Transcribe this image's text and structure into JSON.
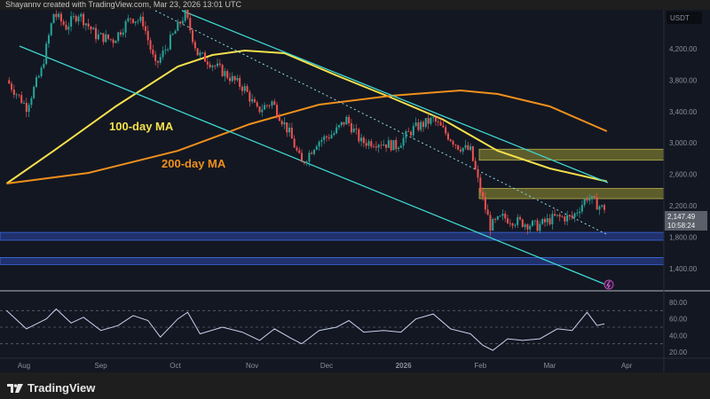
{
  "header": {
    "attribution": "Shayannv created with TradingView.com, Mar 23, 2026 13:01 UTC"
  },
  "footer": {
    "brand": "TradingView"
  },
  "colors": {
    "background": "#131722",
    "up": "#26a69a",
    "down": "#ef5350",
    "ma100": "#f5e14c",
    "ma200": "#f0901c",
    "channel": "#3fd6d0",
    "supply_zone": "#6b6a2e",
    "demand_zone": "#23367a",
    "rsi": "#c8d2ee"
  },
  "chart_data": [
    {
      "type": "candlestick",
      "currency_label": "USDT",
      "ylim": [
        1200,
        4900
      ],
      "y_ticks": [
        "4,200.00",
        "3,800.00",
        "3,400.00",
        "3,000.00",
        "2,600.00",
        "2,200.00",
        "1,800.00",
        "1,400.00"
      ],
      "y_tick_values": [
        4200,
        3800,
        3400,
        3000,
        2600,
        2200,
        1800,
        1400
      ],
      "x_ticks": [
        "Aug",
        "Sep",
        "Oct",
        "Nov",
        "Dec",
        "2026",
        "Feb",
        "Mar",
        "Apr"
      ],
      "x_tick_dates": [
        "2025-08-01",
        "2025-09-01",
        "2025-10-01",
        "2025-11-01",
        "2025-12-01",
        "2026-01-01",
        "2026-02-01",
        "2026-03-01",
        "2026-04-01"
      ],
      "last_price": "2,147.49",
      "countdown": "10:58:24",
      "price_path": [
        [
          "2025-07-25",
          3800
        ],
        [
          "2025-08-02",
          3460
        ],
        [
          "2025-08-08",
          3920
        ],
        [
          "2025-08-13",
          4650
        ],
        [
          "2025-08-18",
          4480
        ],
        [
          "2025-08-23",
          4650
        ],
        [
          "2025-08-30",
          4370
        ],
        [
          "2025-09-06",
          4310
        ],
        [
          "2025-09-13",
          4600
        ],
        [
          "2025-09-18",
          4540
        ],
        [
          "2025-09-23",
          3975
        ],
        [
          "2025-09-29",
          4310
        ],
        [
          "2025-10-05",
          4650
        ],
        [
          "2025-10-10",
          4140
        ],
        [
          "2025-10-15",
          4030
        ],
        [
          "2025-10-22",
          3860
        ],
        [
          "2025-10-29",
          3690
        ],
        [
          "2025-11-03",
          3410
        ],
        [
          "2025-11-09",
          3520
        ],
        [
          "2025-11-16",
          3125
        ],
        [
          "2025-11-21",
          2730
        ],
        [
          "2025-11-27",
          3010
        ],
        [
          "2025-12-04",
          3125
        ],
        [
          "2025-12-09",
          3300
        ],
        [
          "2025-12-15",
          3010
        ],
        [
          "2025-12-22",
          3010
        ],
        [
          "2025-12-29",
          2960
        ],
        [
          "2026-01-05",
          3180
        ],
        [
          "2026-01-13",
          3300
        ],
        [
          "2026-01-18",
          3125
        ],
        [
          "2026-01-23",
          2960
        ],
        [
          "2026-01-28",
          2900
        ],
        [
          "2026-02-01",
          2390
        ],
        [
          "2026-02-05",
          1940
        ],
        [
          "2026-02-10",
          2050
        ],
        [
          "2026-02-17",
          1990
        ],
        [
          "2026-02-24",
          1940
        ],
        [
          "2026-03-03",
          2050
        ],
        [
          "2026-03-10",
          2050
        ],
        [
          "2026-03-16",
          2310
        ],
        [
          "2026-03-23",
          2147.49
        ]
      ],
      "series": [
        {
          "name": "100-day MA",
          "points": [
            [
              "2025-07-25",
              2482
            ],
            [
              "2025-08-13",
              2900
            ],
            [
              "2025-09-07",
              3466
            ],
            [
              "2025-10-02",
              3974
            ],
            [
              "2025-10-16",
              4121
            ],
            [
              "2025-10-29",
              4177
            ],
            [
              "2025-11-14",
              4143
            ],
            [
              "2025-12-05",
              3860
            ],
            [
              "2025-12-27",
              3578
            ],
            [
              "2026-01-17",
              3296
            ],
            [
              "2026-02-08",
              2900
            ],
            [
              "2026-03-01",
              2675
            ],
            [
              "2026-03-24",
              2510
            ]
          ]
        },
        {
          "name": "200-day MA",
          "points": [
            [
              "2025-07-25",
              2482
            ],
            [
              "2025-08-27",
              2618
            ],
            [
              "2025-10-02",
              2900
            ],
            [
              "2025-10-31",
              3240
            ],
            [
              "2025-11-28",
              3488
            ],
            [
              "2025-12-27",
              3601
            ],
            [
              "2026-01-24",
              3669
            ],
            [
              "2026-02-08",
              3624
            ],
            [
              "2026-03-01",
              3466
            ],
            [
              "2026-03-24",
              3149
            ]
          ]
        }
      ],
      "zones": [
        {
          "kind": "resistance",
          "from": 2780,
          "to": 2920
        },
        {
          "kind": "resistance",
          "from": 2290,
          "to": 2420
        },
        {
          "kind": "support",
          "from": 1760,
          "to": 1860
        },
        {
          "kind": "support",
          "from": 1450,
          "to": 1540
        }
      ]
    },
    {
      "type": "line",
      "indicator": "RSI",
      "y_ticks": [
        "80.00",
        "60.00",
        "40.00",
        "20.00"
      ],
      "y_tick_values": [
        80,
        60,
        40,
        20
      ],
      "bands": [
        70,
        50,
        30
      ],
      "values": [
        [
          "2025-07-25",
          70
        ],
        [
          "2025-08-02",
          48
        ],
        [
          "2025-08-10",
          60
        ],
        [
          "2025-08-14",
          72
        ],
        [
          "2025-08-20",
          55
        ],
        [
          "2025-08-25",
          62
        ],
        [
          "2025-09-01",
          46
        ],
        [
          "2025-09-08",
          52
        ],
        [
          "2025-09-14",
          64
        ],
        [
          "2025-09-20",
          58
        ],
        [
          "2025-09-25",
          38
        ],
        [
          "2025-10-02",
          60
        ],
        [
          "2025-10-06",
          68
        ],
        [
          "2025-10-11",
          42
        ],
        [
          "2025-10-20",
          50
        ],
        [
          "2025-10-28",
          44
        ],
        [
          "2025-11-04",
          34
        ],
        [
          "2025-11-10",
          48
        ],
        [
          "2025-11-17",
          36
        ],
        [
          "2025-11-21",
          30
        ],
        [
          "2025-11-28",
          46
        ],
        [
          "2025-12-05",
          50
        ],
        [
          "2025-12-10",
          58
        ],
        [
          "2025-12-16",
          44
        ],
        [
          "2025-12-24",
          46
        ],
        [
          "2025-12-31",
          44
        ],
        [
          "2026-01-06",
          60
        ],
        [
          "2026-01-13",
          66
        ],
        [
          "2026-01-20",
          48
        ],
        [
          "2026-01-28",
          42
        ],
        [
          "2026-02-02",
          28
        ],
        [
          "2026-02-06",
          22
        ],
        [
          "2026-02-12",
          36
        ],
        [
          "2026-02-18",
          34
        ],
        [
          "2026-02-25",
          36
        ],
        [
          "2026-03-04",
          48
        ],
        [
          "2026-03-10",
          46
        ],
        [
          "2026-03-16",
          68
        ],
        [
          "2026-03-20",
          52
        ],
        [
          "2026-03-23",
          54
        ]
      ]
    }
  ]
}
